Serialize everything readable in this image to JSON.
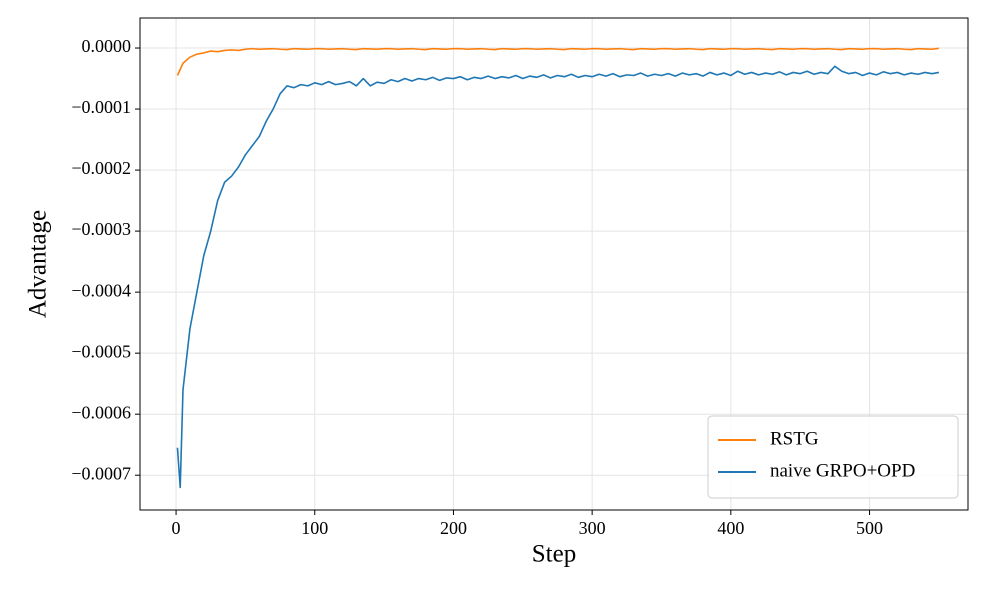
{
  "chart_data": {
    "type": "line",
    "x_label": "Step",
    "y_label": "Advantage",
    "x": [
      1,
      3,
      5,
      10,
      15,
      20,
      25,
      30,
      35,
      40,
      45,
      50,
      55,
      60,
      65,
      70,
      75,
      80,
      85,
      90,
      95,
      100,
      105,
      110,
      115,
      120,
      125,
      130,
      135,
      140,
      145,
      150,
      155,
      160,
      165,
      170,
      175,
      180,
      185,
      190,
      195,
      200,
      205,
      210,
      215,
      220,
      225,
      230,
      235,
      240,
      245,
      250,
      255,
      260,
      265,
      270,
      275,
      280,
      285,
      290,
      295,
      300,
      305,
      310,
      315,
      320,
      325,
      330,
      335,
      340,
      345,
      350,
      355,
      360,
      365,
      370,
      375,
      380,
      385,
      390,
      395,
      400,
      405,
      410,
      415,
      420,
      425,
      430,
      435,
      440,
      445,
      450,
      455,
      460,
      465,
      470,
      475,
      480,
      485,
      490,
      495,
      500,
      505,
      510,
      515,
      520,
      525,
      530,
      535,
      540,
      545,
      550
    ],
    "series": [
      {
        "name": "RSTG",
        "color": "#ff7f0e",
        "values": [
          -4.5e-05,
          -3.5e-05,
          -2.5e-05,
          -1.5e-05,
          -1e-05,
          -8e-06,
          -5e-06,
          -6e-06,
          -4e-06,
          -3e-06,
          -4e-06,
          -2e-06,
          -1e-06,
          -2e-06,
          -1.5e-06,
          -1e-06,
          -2e-06,
          -2.5e-06,
          -1e-06,
          -1.5e-06,
          -2e-06,
          -1e-06,
          -1e-06,
          -2e-06,
          -1.5e-06,
          -1e-06,
          -2e-06,
          -2.5e-06,
          -1e-06,
          -1.5e-06,
          -2e-06,
          -1e-06,
          -1e-06,
          -2e-06,
          -1.5e-06,
          -1e-06,
          -2e-06,
          -2.5e-06,
          -1e-06,
          -1.5e-06,
          -2e-06,
          -1e-06,
          -1e-06,
          -2e-06,
          -1.5e-06,
          -1e-06,
          -2e-06,
          -2.5e-06,
          -1e-06,
          -1.5e-06,
          -2e-06,
          -1e-06,
          -1e-06,
          -2e-06,
          -1.5e-06,
          -1e-06,
          -2e-06,
          -2.5e-06,
          -1e-06,
          -1.5e-06,
          -2e-06,
          -1e-06,
          -1e-06,
          -2e-06,
          -1.5e-06,
          -1e-06,
          -2e-06,
          -2.5e-06,
          -1e-06,
          -1.5e-06,
          -2e-06,
          -1e-06,
          -1e-06,
          -2e-06,
          -1.5e-06,
          -1e-06,
          -2e-06,
          -2.5e-06,
          -1e-06,
          -1.5e-06,
          -2e-06,
          -1e-06,
          -1e-06,
          -2e-06,
          -1.5e-06,
          -1e-06,
          -2e-06,
          -2.5e-06,
          -1e-06,
          -1.5e-06,
          -2e-06,
          -1e-06,
          -1e-06,
          -2e-06,
          -1.5e-06,
          -1e-06,
          -2e-06,
          -2.5e-06,
          -1e-06,
          -1.5e-06,
          -2e-06,
          -1e-06,
          -1e-06,
          -2e-06,
          -1.5e-06,
          -1e-06,
          -2e-06,
          -2.5e-06,
          -1e-06,
          -1.5e-06,
          -2e-06,
          -5e-07
        ]
      },
      {
        "name": "naive GRPO+OPD",
        "color": "#1f77b4",
        "values": [
          -0.000655,
          -0.00072,
          -0.00056,
          -0.00046,
          -0.0004,
          -0.00034,
          -0.0003,
          -0.00025,
          -0.00022,
          -0.00021,
          -0.000195,
          -0.000175,
          -0.00016,
          -0.000145,
          -0.00012,
          -0.0001,
          -7.5e-05,
          -6.2e-05,
          -6.5e-05,
          -6e-05,
          -6.2e-05,
          -5.7e-05,
          -6e-05,
          -5.5e-05,
          -6e-05,
          -5.8e-05,
          -5.5e-05,
          -6.2e-05,
          -5e-05,
          -6.2e-05,
          -5.6e-05,
          -5.8e-05,
          -5.2e-05,
          -5.5e-05,
          -5e-05,
          -5.4e-05,
          -5e-05,
          -5.2e-05,
          -4.8e-05,
          -5.3e-05,
          -4.9e-05,
          -5e-05,
          -4.7e-05,
          -5.2e-05,
          -4.8e-05,
          -5e-05,
          -4.6e-05,
          -5e-05,
          -4.7e-05,
          -4.9e-05,
          -4.5e-05,
          -5e-05,
          -4.6e-05,
          -4.8e-05,
          -4.4e-05,
          -4.9e-05,
          -4.5e-05,
          -4.7e-05,
          -4.3e-05,
          -4.8e-05,
          -4.5e-05,
          -4.7e-05,
          -4.3e-05,
          -4.6e-05,
          -4.2e-05,
          -4.7e-05,
          -4.4e-05,
          -4.5e-05,
          -4.1e-05,
          -4.6e-05,
          -4.3e-05,
          -4.5e-05,
          -4.2e-05,
          -4.6e-05,
          -4.1e-05,
          -4.4e-05,
          -4.2e-05,
          -4.6e-05,
          -4e-05,
          -4.4e-05,
          -4.1e-05,
          -4.5e-05,
          -3.8e-05,
          -4.3e-05,
          -4e-05,
          -4.4e-05,
          -4.1e-05,
          -4.3e-05,
          -3.9e-05,
          -4.4e-05,
          -4e-05,
          -4.2e-05,
          -3.8e-05,
          -4.3e-05,
          -4e-05,
          -4.2e-05,
          -3e-05,
          -3.8e-05,
          -4.2e-05,
          -4e-05,
          -4.5e-05,
          -4.1e-05,
          -4.4e-05,
          -3.9e-05,
          -4.2e-05,
          -4e-05,
          -4.4e-05,
          -4.1e-05,
          -4.3e-05,
          -4e-05,
          -4.2e-05,
          -4e-05
        ]
      }
    ],
    "xlim": [
      -26,
      571
    ],
    "xticks": [
      0,
      100,
      200,
      300,
      400,
      500
    ],
    "ylim": [
      -0.000757,
      4.92e-05
    ],
    "yticks": [
      {
        "value": 0,
        "label": "0.0000"
      },
      {
        "value": -0.0001,
        "label": "−0.0001"
      },
      {
        "value": -0.0002,
        "label": "−0.0002"
      },
      {
        "value": -0.0003,
        "label": "−0.0003"
      },
      {
        "value": -0.0004,
        "label": "−0.0004"
      },
      {
        "value": -0.0005,
        "label": "−0.0005"
      },
      {
        "value": -0.0006,
        "label": "−0.0006"
      },
      {
        "value": -0.0007,
        "label": "−0.0007"
      }
    ],
    "grid": true,
    "legend": "lower right"
  }
}
